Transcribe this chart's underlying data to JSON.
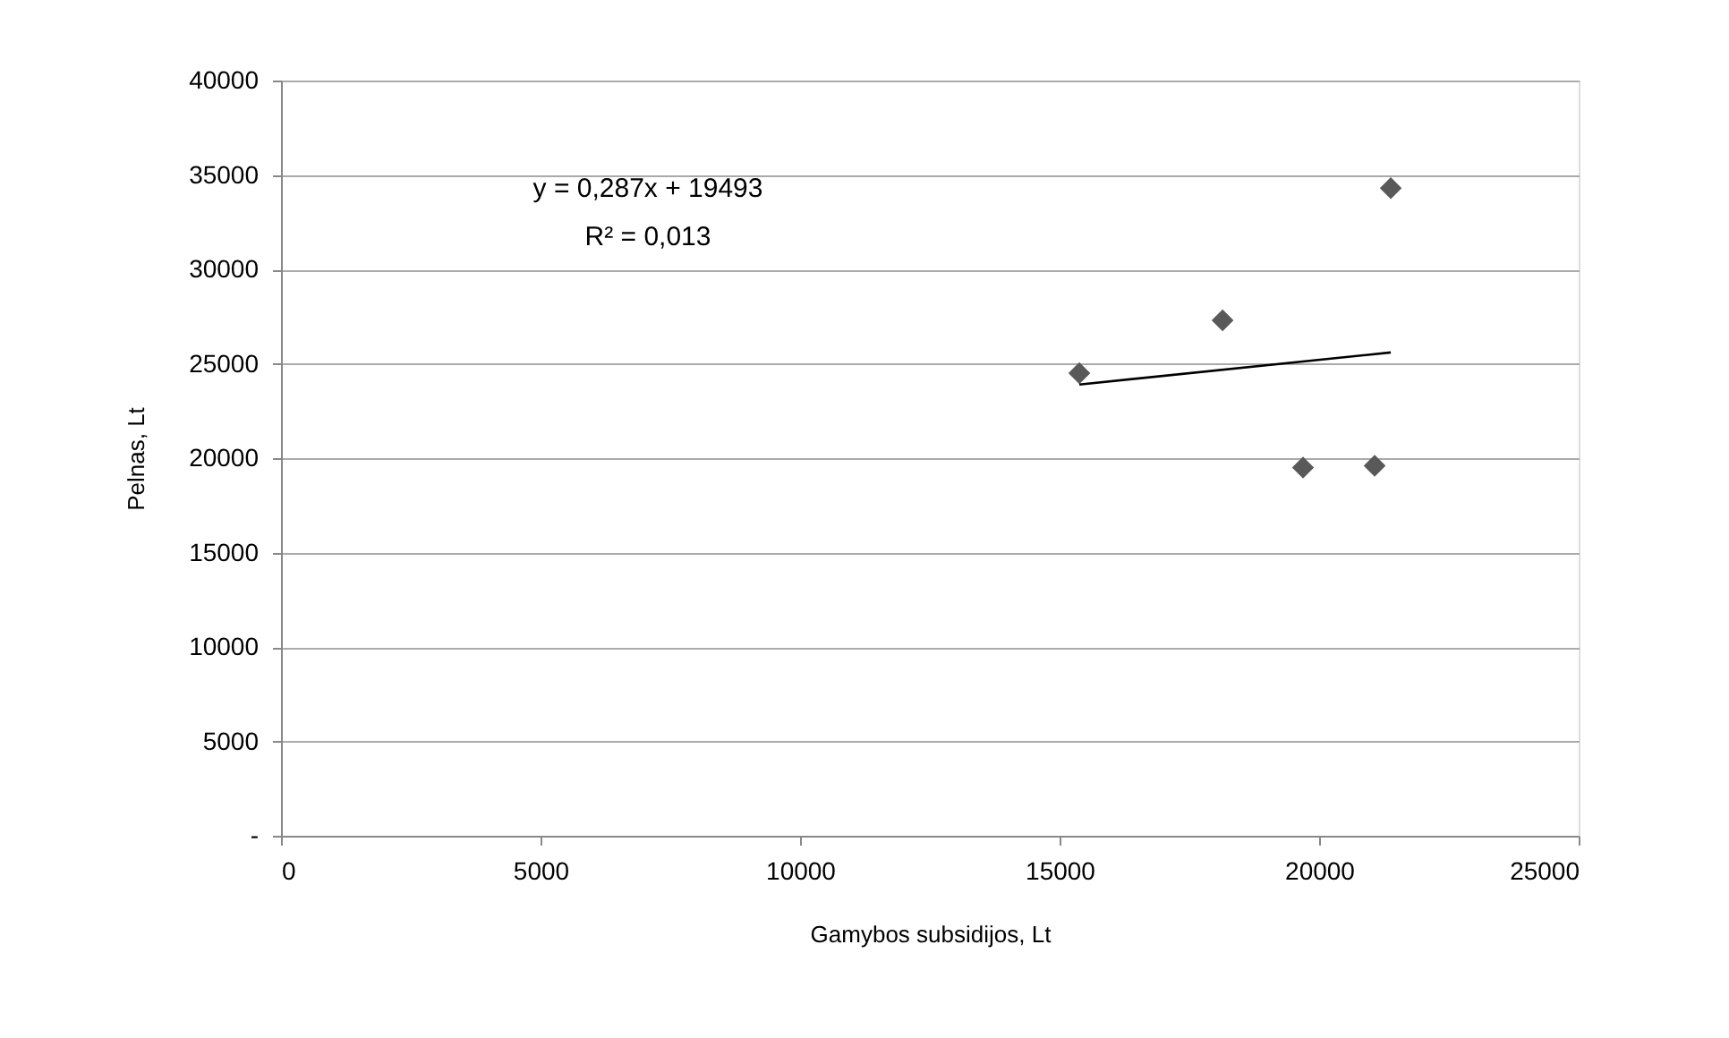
{
  "chart_data": {
    "type": "scatter",
    "xlabel": "Gamybos subsidijos, Lt",
    "ylabel": "Pelnas, Lt",
    "series": [
      {
        "color": "#595959",
        "marker": "diamond",
        "x": [
          15380,
          18140,
          19690,
          21070,
          21380
        ],
        "values": [
          24500,
          27300,
          19500,
          19600,
          34300
        ]
      },
      {
        "type": "line",
        "color": "#000000",
        "marker": "none",
        "line_style": "solid",
        "x": [
          15380,
          21380
        ],
        "values": [
          23900,
          25600
        ]
      }
    ],
    "xlim": [
      0,
      25000
    ],
    "xticks": [
      0,
      5000,
      10000,
      15000,
      20000,
      25000
    ],
    "ylim": [
      0,
      40000
    ],
    "yticks": [
      {
        "value": 0,
        "label": "-"
      },
      5000,
      10000,
      15000,
      20000,
      25000,
      30000,
      35000,
      40000
    ],
    "grid": "y",
    "annotations": [
      "y = 0,287x + 19493",
      "R² = 0,013"
    ]
  }
}
